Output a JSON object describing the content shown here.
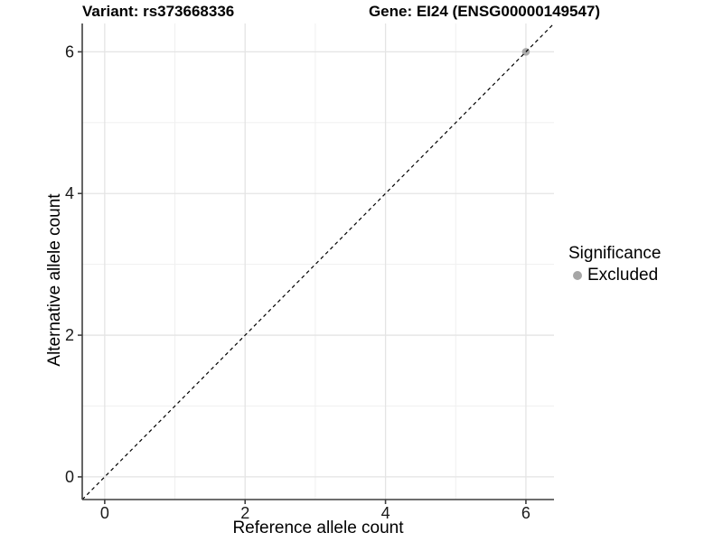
{
  "chart_data": {
    "type": "scatter",
    "title_left": "Variant: rs373668336",
    "title_right": "Gene: EI24 (ENSG00000149547)",
    "xlabel": "Reference allele count",
    "ylabel": "Alternative allele count",
    "xlim": [
      -0.32,
      6.4
    ],
    "ylim": [
      -0.32,
      6.4
    ],
    "xticks": [
      0,
      2,
      4,
      6
    ],
    "yticks": [
      0,
      2,
      4,
      6
    ],
    "xminor": [
      1,
      3,
      5
    ],
    "yminor": [
      1,
      3,
      5
    ],
    "grid": true,
    "legend_title": "Significance",
    "legend_position": "right",
    "series": [
      {
        "name": "Excluded",
        "color": "#a6a6a6",
        "points": [
          {
            "x": 6,
            "y": 6
          }
        ]
      }
    ],
    "identity_line": {
      "style": "dashed",
      "color": "#000000",
      "slope": 1,
      "intercept": 0
    }
  },
  "colors": {
    "background": "#ffffff",
    "axis": "#3f3f3f",
    "tick_label": "#1a1a1a",
    "grid_major": "#e4e4e4",
    "grid_minor": "#f0f0f0"
  }
}
